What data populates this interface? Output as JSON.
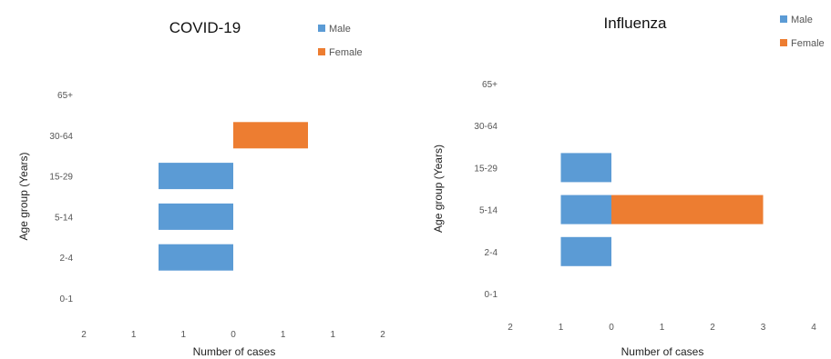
{
  "chart_data": [
    {
      "type": "bar",
      "orientation": "horizontal",
      "style": "population-pyramid",
      "title": "COVID-19",
      "xlabel": "Number of cases",
      "ylabel": "Age group (Years)",
      "categories": [
        "0-1",
        "2-4",
        "5-14",
        "15-29",
        "30-64",
        "65+"
      ],
      "series": [
        {
          "name": "Male",
          "color": "#5b9bd5",
          "values": [
            0,
            1,
            1,
            1,
            0,
            0
          ]
        },
        {
          "name": "Female",
          "color": "#ed7d31",
          "values": [
            0,
            0,
            0,
            0,
            1,
            0
          ]
        }
      ],
      "xlim": [
        -2,
        2
      ],
      "xtick_labels": [
        "2",
        "1",
        "1",
        "0",
        "1",
        "1",
        "2"
      ],
      "legend": "top-right",
      "grid": false
    },
    {
      "type": "bar",
      "orientation": "horizontal",
      "style": "population-pyramid",
      "title": "Influenza",
      "xlabel": "Number of cases",
      "ylabel": "Age group (Years)",
      "categories": [
        "0-1",
        "2-4",
        "5-14",
        "15-29",
        "30-64",
        "65+"
      ],
      "series": [
        {
          "name": "Male",
          "color": "#5b9bd5",
          "values": [
            0,
            1,
            1,
            1,
            0,
            0
          ]
        },
        {
          "name": "Female",
          "color": "#ed7d31",
          "values": [
            0,
            0,
            3,
            0,
            0,
            0
          ]
        }
      ],
      "xlim": [
        -2,
        4
      ],
      "xtick_labels": [
        "2",
        "1",
        "0",
        "1",
        "2",
        "3",
        "4"
      ],
      "legend": "top-right",
      "grid": false
    }
  ]
}
